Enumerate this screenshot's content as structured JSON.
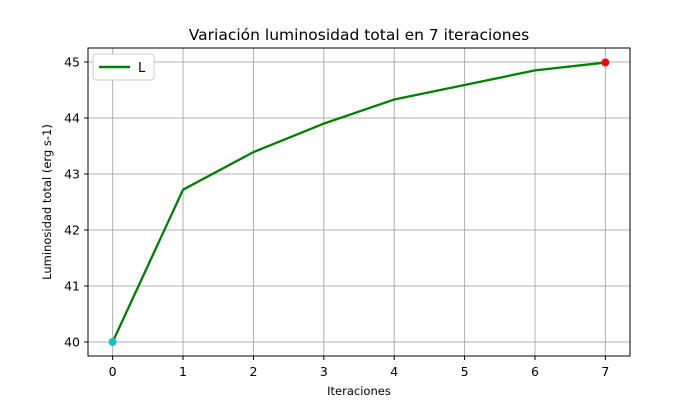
{
  "chart_data": {
    "type": "line",
    "title": "Variación luminosidad total en 7 iteraciones",
    "xlabel": "Iteraciones",
    "ylabel": "Luminosidad total (erg s-1)",
    "xlim": [
      -0.35,
      7.35
    ],
    "ylim": [
      39.75,
      45.25
    ],
    "xticks": [
      0,
      1,
      2,
      3,
      4,
      5,
      6,
      7
    ],
    "yticks": [
      40,
      41,
      42,
      43,
      44,
      45
    ],
    "grid": true,
    "legend_position": "top-left",
    "series": [
      {
        "name": "L",
        "color": "#008000",
        "x": [
          0,
          1,
          2,
          3,
          4,
          5,
          6,
          7
        ],
        "y": [
          40.0,
          42.72,
          43.39,
          43.9,
          44.33,
          44.59,
          44.85,
          44.99
        ]
      }
    ],
    "markers": [
      {
        "x": 0,
        "y": 40.0,
        "color": "#17becf"
      },
      {
        "x": 7,
        "y": 44.99,
        "color": "#ff0000"
      }
    ]
  }
}
